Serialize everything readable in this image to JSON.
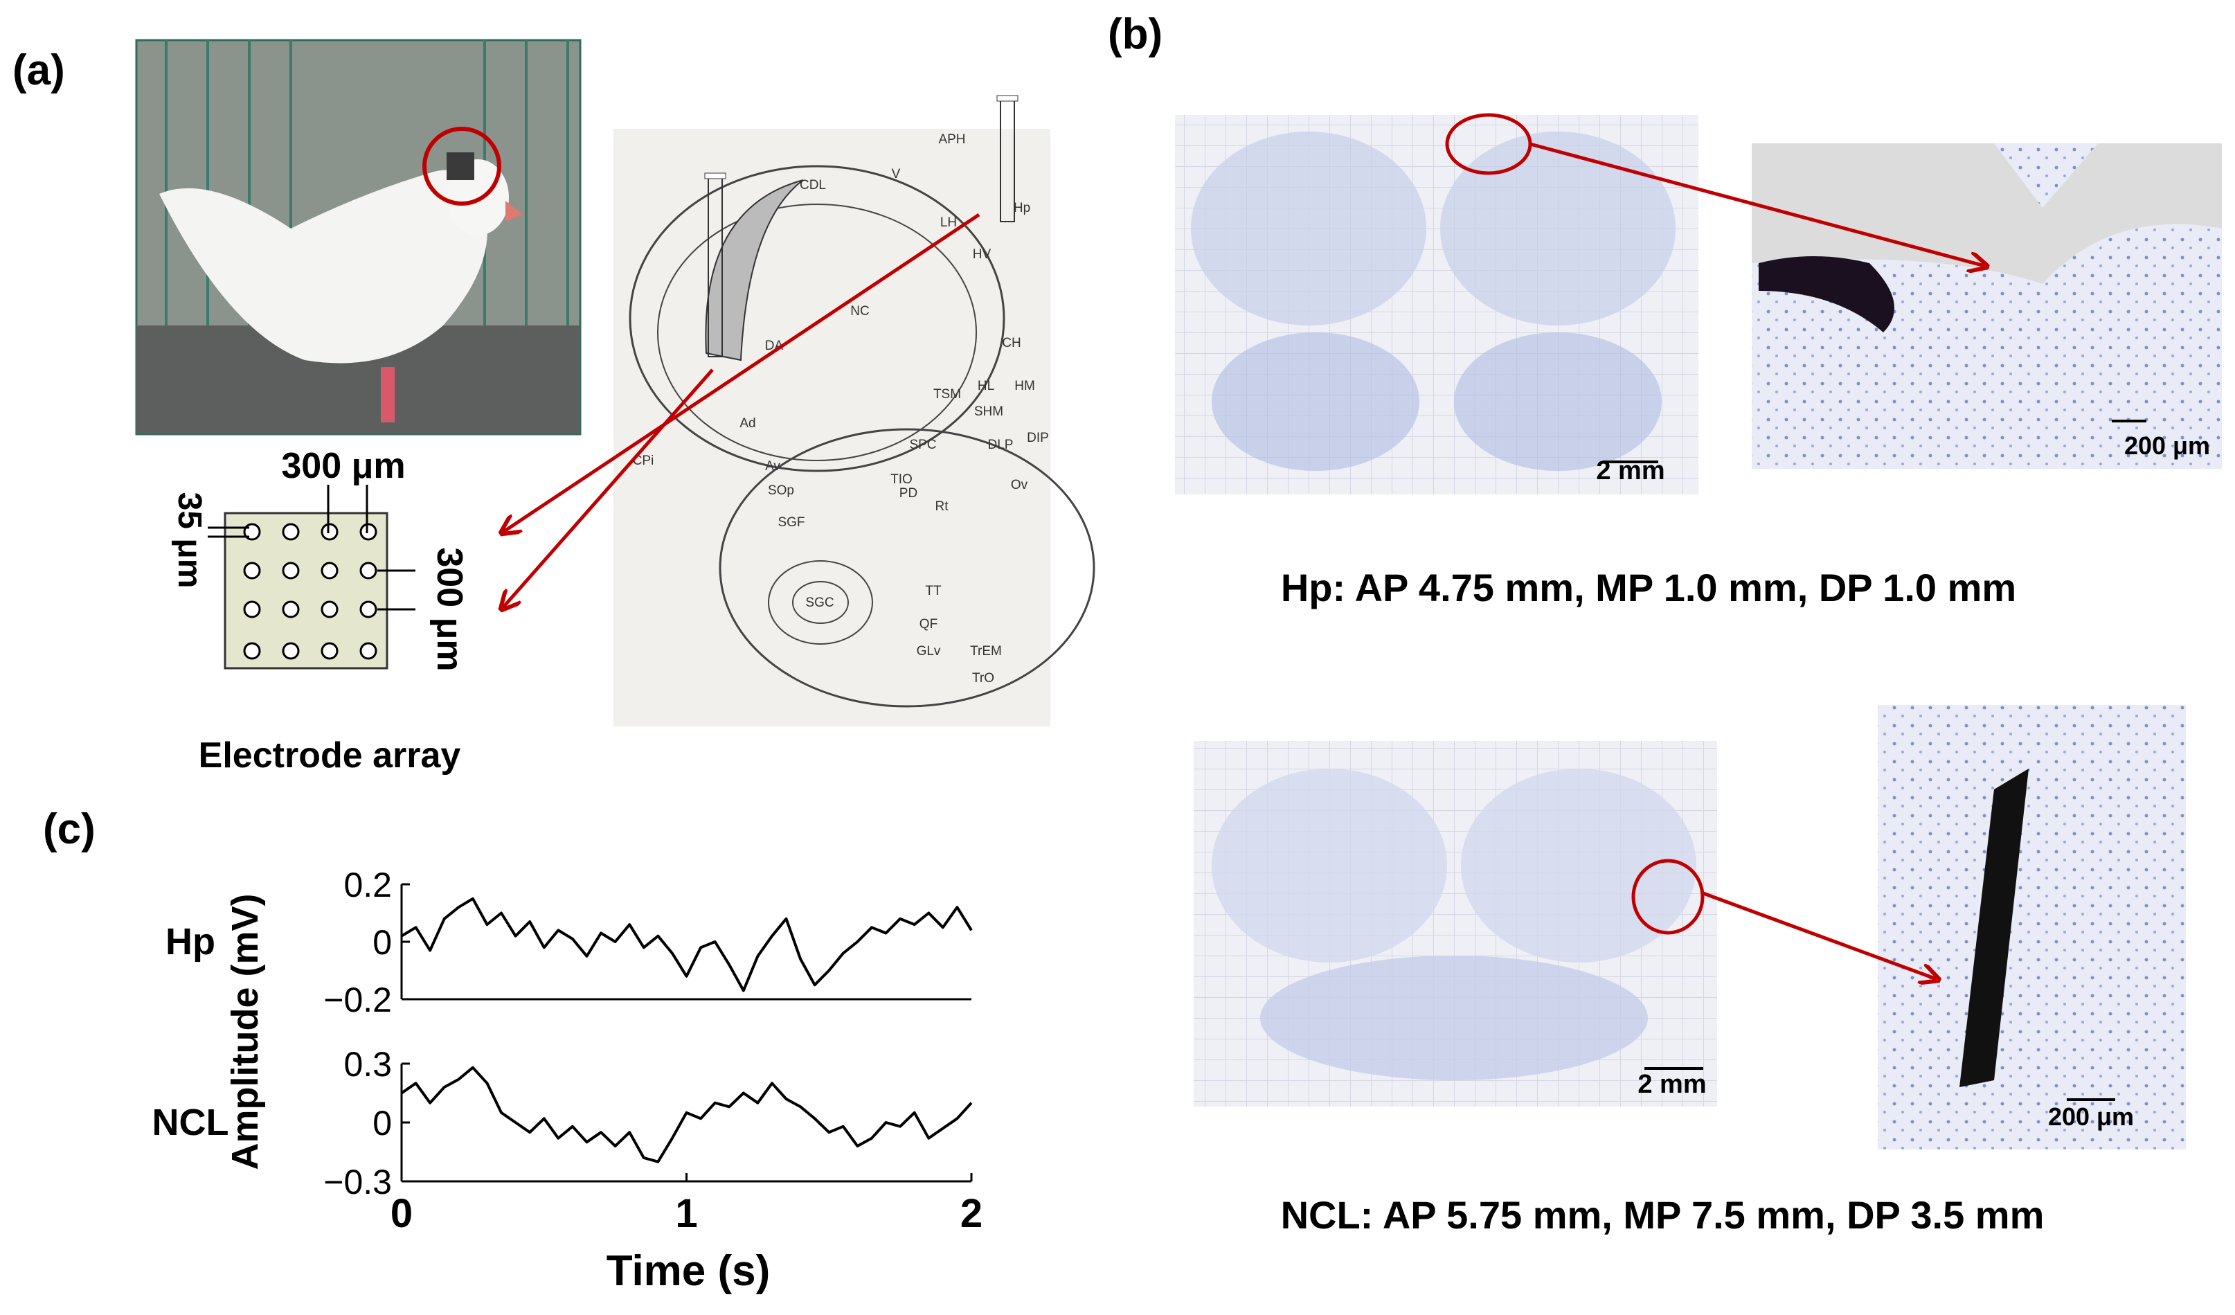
{
  "panels": {
    "a": {
      "label": "(a)",
      "electrode": {
        "pitch_top": "300 μm",
        "site": "35 μm",
        "pitch_side": "300 μm",
        "caption": "Electrode array"
      },
      "atlas_labels": [
        "CDL",
        "APH",
        "Hp",
        "V",
        "LH",
        "HV",
        "DA",
        "NC",
        "CH",
        "HL",
        "HM",
        "TSM",
        "SHM",
        "SPC",
        "DLP",
        "DIP",
        "Ad",
        "Av",
        "CPi",
        "TIO",
        "PD",
        "Rt",
        "Ov",
        "SOp",
        "SGF",
        "SGC",
        "TT",
        "QF",
        "GLv",
        "TrEM",
        "TrO"
      ]
    },
    "b": {
      "label": "(b)",
      "hp": {
        "caption": "Hp:  AP 4.75 mm, MP 1.0 mm, DP 1.0 mm",
        "scale_whole": "2 mm",
        "scale_zoom": "200 μm"
      },
      "ncl": {
        "caption": "NCL: AP 5.75 mm, MP 7.5 mm, DP 3.5 mm",
        "scale_whole": "2 mm",
        "scale_zoom": "200 μm"
      }
    },
    "c": {
      "label": "(c)",
      "ylabel": "Amplitude (mV)",
      "xlabel": "Time (s)"
    }
  },
  "chart_data": [
    {
      "type": "line",
      "title": "Hp",
      "color": "#000000",
      "x": [
        0,
        0.05,
        0.1,
        0.15,
        0.2,
        0.25,
        0.3,
        0.35,
        0.4,
        0.45,
        0.5,
        0.55,
        0.6,
        0.65,
        0.7,
        0.75,
        0.8,
        0.85,
        0.9,
        0.95,
        1,
        1.05,
        1.1,
        1.15,
        1.2,
        1.25,
        1.3,
        1.35,
        1.4,
        1.45,
        1.5,
        1.55,
        1.6,
        1.65,
        1.7,
        1.75,
        1.8,
        1.85,
        1.9,
        1.95,
        2
      ],
      "values": [
        0.02,
        0.05,
        -0.03,
        0.08,
        0.12,
        0.15,
        0.06,
        0.1,
        0.02,
        0.07,
        -0.02,
        0.04,
        0.01,
        -0.05,
        0.03,
        0.0,
        0.06,
        -0.02,
        0.02,
        -0.04,
        -0.12,
        -0.02,
        0.0,
        -0.08,
        -0.17,
        -0.05,
        0.02,
        0.08,
        -0.06,
        -0.15,
        -0.1,
        -0.04,
        0.0,
        0.05,
        0.03,
        0.08,
        0.06,
        0.1,
        0.05,
        0.12,
        0.04
      ],
      "xlim": [
        0,
        2
      ],
      "ylim": [
        -0.2,
        0.2
      ],
      "yticks": [
        0.2,
        0,
        {
          "value": -0.2,
          "label": "−0.2"
        }
      ]
    },
    {
      "type": "line",
      "title": "NCL",
      "color": "#000000",
      "x": [
        0,
        0.05,
        0.1,
        0.15,
        0.2,
        0.25,
        0.3,
        0.35,
        0.4,
        0.45,
        0.5,
        0.55,
        0.6,
        0.65,
        0.7,
        0.75,
        0.8,
        0.85,
        0.9,
        0.95,
        1,
        1.05,
        1.1,
        1.15,
        1.2,
        1.25,
        1.3,
        1.35,
        1.4,
        1.45,
        1.5,
        1.55,
        1.6,
        1.65,
        1.7,
        1.75,
        1.8,
        1.85,
        1.9,
        1.95,
        2
      ],
      "values": [
        0.15,
        0.2,
        0.1,
        0.18,
        0.22,
        0.28,
        0.2,
        0.05,
        0.0,
        -0.05,
        0.02,
        -0.08,
        -0.02,
        -0.1,
        -0.05,
        -0.12,
        -0.05,
        -0.18,
        -0.2,
        -0.08,
        0.05,
        0.02,
        0.1,
        0.08,
        0.15,
        0.1,
        0.2,
        0.12,
        0.08,
        0.02,
        -0.05,
        -0.02,
        -0.12,
        -0.08,
        0.0,
        -0.02,
        0.05,
        -0.08,
        -0.03,
        0.02,
        0.1
      ],
      "xlim": [
        0,
        2
      ],
      "ylim": [
        -0.3,
        0.3
      ],
      "xticks": [
        0,
        1,
        2
      ],
      "yticks": [
        0.3,
        0,
        {
          "value": -0.3,
          "label": "−0.3"
        }
      ]
    }
  ]
}
